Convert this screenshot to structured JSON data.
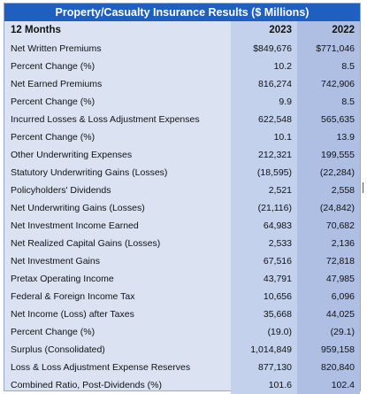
{
  "title": "Property/Casualty Insurance Results ($ Millions)",
  "header": {
    "label": "12 Months",
    "col1": "2023",
    "col2": "2022"
  },
  "rows": [
    {
      "label": "Net Written Premiums",
      "v2023": "$849,676",
      "v2022": "$771,046"
    },
    {
      "label": "Percent Change (%)",
      "v2023": "10.2",
      "v2022": "8.5"
    },
    {
      "label": "Net Earned Premiums",
      "v2023": "816,274",
      "v2022": "742,906"
    },
    {
      "label": "Percent Change (%)",
      "v2023": "9.9",
      "v2022": "8.5"
    },
    {
      "label": "Incurred Losses & Loss Adjustment Expenses",
      "v2023": "622,548",
      "v2022": "565,635"
    },
    {
      "label": "Percent Change (%)",
      "v2023": "10.1",
      "v2022": "13.9"
    },
    {
      "label": "Other Underwriting Expenses",
      "v2023": "212,321",
      "v2022": "199,555"
    },
    {
      "label": "Statutory Underwriting Gains (Losses)",
      "v2023": "(18,595)",
      "v2022": "(22,284)"
    },
    {
      "label": "Policyholders' Dividends",
      "v2023": "2,521",
      "v2022": "2,558"
    },
    {
      "label": "Net Underwriting Gains (Losses)",
      "v2023": "(21,116)",
      "v2022": "(24,842)"
    },
    {
      "label": "Net Investment Income Earned",
      "v2023": "64,983",
      "v2022": "70,682"
    },
    {
      "label": "Net Realized Capital Gains (Losses)",
      "v2023": "2,533",
      "v2022": "2,136"
    },
    {
      "label": "Net Investment Gains",
      "v2023": "67,516",
      "v2022": "72,818"
    },
    {
      "label": "Pretax Operating Income",
      "v2023": "43,791",
      "v2022": "47,985"
    },
    {
      "label": "Federal & Foreign Income Tax",
      "v2023": "10,656",
      "v2022": "6,096"
    },
    {
      "label": "Net Income (Loss) after Taxes",
      "v2023": "35,668",
      "v2022": "44,025"
    },
    {
      "label": "Percent Change (%)",
      "v2023": "(19.0)",
      "v2022": "(29.1)"
    },
    {
      "label": "Surplus (Consolidated)",
      "v2023": "1,014,849",
      "v2022": "959,158"
    },
    {
      "label": "Loss & Loss Adjustment Expense Reserves",
      "v2023": "877,130",
      "v2022": "820,840"
    },
    {
      "label": "Combined Ratio, Post-Dividends (%)",
      "v2023": "101.6",
      "v2022": "102.4"
    }
  ]
}
